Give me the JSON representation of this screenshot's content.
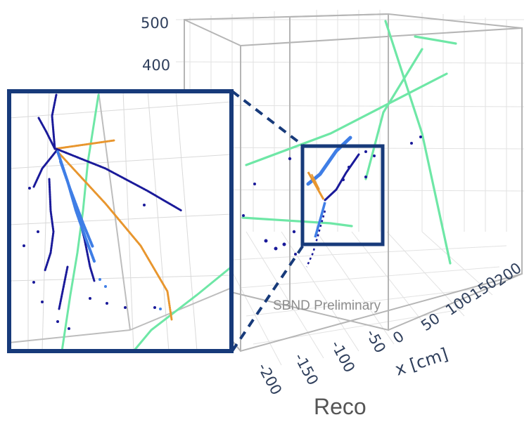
{
  "chart_data": {
    "type": "scatter",
    "title": "",
    "caption": "Reco",
    "watermark": "SBND Preliminary",
    "xlabel": "x [cm]",
    "x_ticks": [
      "-200",
      "-150",
      "-100",
      "-50",
      "0",
      "50",
      "100",
      "150",
      "200"
    ],
    "y_ticks": [
      "400",
      "500"
    ],
    "grid": true,
    "series_colors": {
      "track_primary": "#1a1a9a",
      "shower": "#3f7ee6",
      "track_muon_like": "#e8962e",
      "cosmic": "#6ee7a6",
      "frame": "#173a7a"
    }
  }
}
